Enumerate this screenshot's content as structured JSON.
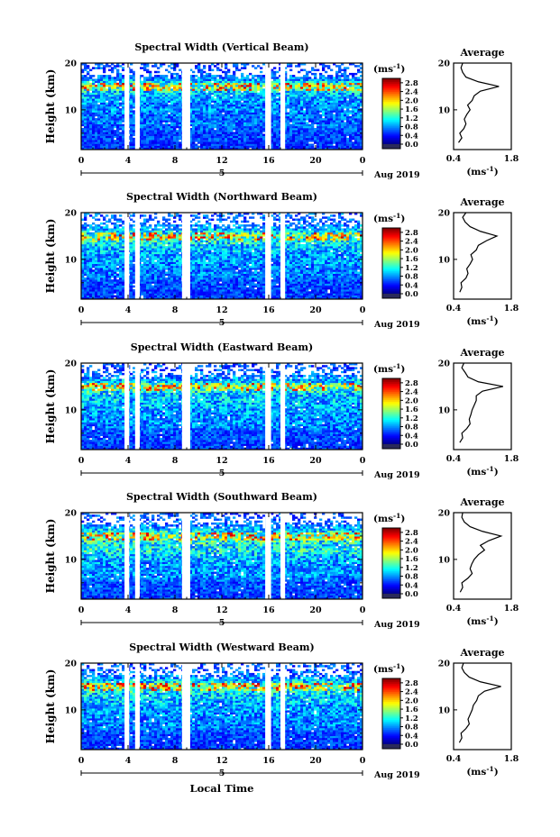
{
  "chart_data": {
    "type": "heatmap",
    "xlabel": "Local Time",
    "ylabel": "Height (km)",
    "date_label": "Aug 2019",
    "date_marker": "5",
    "x_ticks": [
      "0",
      "4",
      "8",
      "12",
      "16",
      "20",
      "0"
    ],
    "x_range_hours": [
      0,
      24
    ],
    "y_ticks": [
      "20",
      "10"
    ],
    "y_range_km": [
      1.5,
      20
    ],
    "colorbar": {
      "unit": "(ms",
      "unit_exp": "-1",
      "ticks": [
        "2.8",
        "2.4",
        "2.0",
        "1.6",
        "1.2",
        "0.8",
        "0.4",
        "0.0"
      ],
      "range": [
        0,
        3.0
      ]
    },
    "profile": {
      "title": "Average",
      "x_ticks": [
        "0.4",
        "1.8"
      ],
      "xlim": [
        0.4,
        1.8
      ],
      "xlabel": "(ms",
      "xlabel_exp": "-1"
    },
    "data_gaps_hours": [
      [
        3.7,
        4.1
      ],
      [
        4.6,
        5.0
      ],
      [
        8.6,
        9.3
      ],
      [
        15.7,
        16.2
      ],
      [
        17.0,
        17.4
      ]
    ],
    "panels": [
      {
        "title": "Spectral Width (Vertical Beam)",
        "average_profile": {
          "height_km": [
            3,
            4,
            5,
            6,
            7,
            8,
            9,
            10,
            11,
            12,
            13,
            14,
            15,
            16,
            17,
            18,
            19,
            20
          ],
          "width_ms": [
            0.52,
            0.6,
            0.55,
            0.65,
            0.7,
            0.66,
            0.72,
            0.8,
            0.74,
            0.85,
            0.9,
            1.05,
            1.5,
            1.0,
            0.7,
            0.62,
            0.58,
            0.62
          ]
        }
      },
      {
        "title": "Spectral Width (Northward Beam)",
        "average_profile": {
          "height_km": [
            3,
            4,
            5,
            6,
            7,
            8,
            9,
            10,
            11,
            12,
            13,
            14,
            15,
            16,
            17,
            18,
            19,
            20
          ],
          "width_ms": [
            0.55,
            0.6,
            0.58,
            0.7,
            0.75,
            0.72,
            0.8,
            0.86,
            0.82,
            0.95,
            1.0,
            1.2,
            1.45,
            1.05,
            0.8,
            0.68,
            0.62,
            0.7
          ]
        }
      },
      {
        "title": "Spectral Width (Eastward Beam)",
        "average_profile": {
          "height_km": [
            3,
            4,
            5,
            6,
            7,
            8,
            9,
            10,
            11,
            12,
            13,
            14,
            15,
            16,
            17,
            18,
            19,
            20
          ],
          "width_ms": [
            0.55,
            0.62,
            0.6,
            0.72,
            0.8,
            0.78,
            0.82,
            0.85,
            0.9,
            0.95,
            0.95,
            1.1,
            1.6,
            1.0,
            0.75,
            0.68,
            0.6,
            0.65
          ]
        }
      },
      {
        "title": "Spectral Width (Southward Beam)",
        "average_profile": {
          "height_km": [
            3,
            4,
            5,
            6,
            7,
            8,
            9,
            10,
            11,
            12,
            13,
            14,
            15,
            16,
            17,
            18,
            19,
            20
          ],
          "width_ms": [
            0.56,
            0.62,
            0.6,
            0.75,
            0.85,
            0.8,
            0.84,
            0.9,
            1.0,
            1.15,
            1.05,
            1.25,
            1.55,
            1.1,
            0.8,
            0.66,
            0.6,
            0.62
          ]
        }
      },
      {
        "title": "Spectral Width (Westward Beam)",
        "average_profile": {
          "height_km": [
            3,
            4,
            5,
            6,
            7,
            8,
            9,
            10,
            11,
            12,
            13,
            14,
            15,
            16,
            17,
            18,
            19,
            20
          ],
          "width_ms": [
            0.54,
            0.6,
            0.58,
            0.7,
            0.78,
            0.75,
            0.8,
            0.85,
            0.88,
            0.96,
            1.0,
            1.15,
            1.55,
            1.05,
            0.78,
            0.66,
            0.6,
            0.64
          ]
        }
      }
    ]
  }
}
